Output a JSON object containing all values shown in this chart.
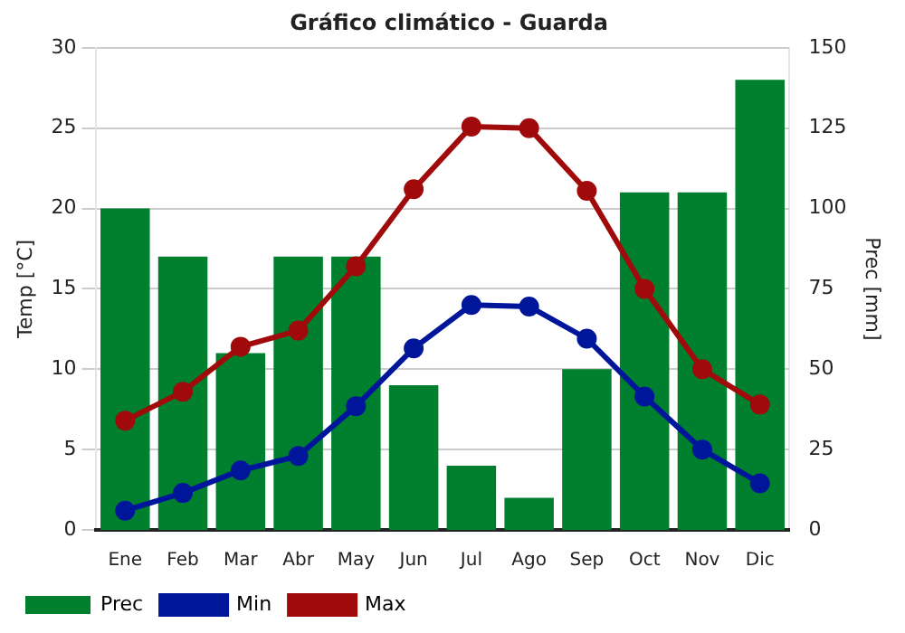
{
  "chart_data": {
    "type": "bar",
    "title": "Gráfico climático - Guarda",
    "ylabel": "Temp [°C]",
    "y2label": "Prec [mm]",
    "categories": [
      "Ene",
      "Feb",
      "Mar",
      "Abr",
      "May",
      "Jun",
      "Jul",
      "Ago",
      "Sep",
      "Oct",
      "Nov",
      "Dic"
    ],
    "series": [
      {
        "name": "Prec",
        "axis": "y2",
        "color": "#007f2f",
        "values": [
          100,
          85,
          55,
          85,
          85,
          45,
          20,
          10,
          50,
          105,
          105,
          140
        ]
      },
      {
        "name": "Min",
        "type": "line",
        "color": "#00169a",
        "values": [
          1.2,
          2.3,
          3.7,
          4.6,
          7.7,
          11.3,
          14.0,
          13.9,
          11.9,
          8.3,
          5.0,
          2.9
        ]
      },
      {
        "name": "Max",
        "type": "line",
        "color": "#a00a0a",
        "values": [
          6.8,
          8.6,
          11.4,
          12.4,
          16.4,
          21.2,
          25.1,
          25.0,
          21.1,
          15.0,
          10.0,
          7.8
        ]
      }
    ],
    "ylim": [
      0,
      30
    ],
    "yticks": [
      0,
      5,
      10,
      15,
      20,
      25,
      30
    ],
    "y2lim": [
      0,
      150
    ],
    "y2ticks": [
      0,
      25,
      50,
      75,
      100,
      125,
      150
    ],
    "grid": "y",
    "legend": "bottom",
    "marker": "circle",
    "line_style": "solid"
  }
}
